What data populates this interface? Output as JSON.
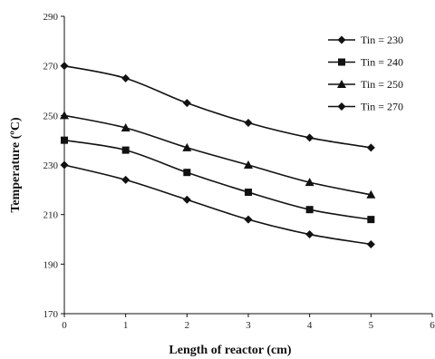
{
  "chart_data": {
    "type": "line",
    "title": "",
    "xlabel": "Length of reactor (cm)",
    "ylabel": "Temperature (ºC)",
    "xlim": [
      0,
      6
    ],
    "ylim": [
      170,
      290
    ],
    "xticks": [
      0,
      1,
      2,
      3,
      4,
      5,
      6
    ],
    "yticks": [
      170,
      190,
      210,
      230,
      250,
      270,
      290
    ],
    "grid": false,
    "legend_position": "top-right",
    "x": [
      0,
      1,
      2,
      3,
      4,
      5
    ],
    "series": [
      {
        "name": "Tin = 230",
        "marker": "diamond",
        "values": [
          230,
          224,
          216,
          208,
          202,
          198
        ]
      },
      {
        "name": "Tin = 240",
        "marker": "square",
        "values": [
          240,
          236,
          227,
          219,
          212,
          208
        ]
      },
      {
        "name": "Tin = 250",
        "marker": "triangle",
        "values": [
          250,
          245,
          237,
          230,
          223,
          218
        ]
      },
      {
        "name": "Tin = 270",
        "marker": "diamond",
        "values": [
          270,
          265,
          255,
          247,
          241,
          237
        ]
      }
    ],
    "line_color": "#111111"
  }
}
